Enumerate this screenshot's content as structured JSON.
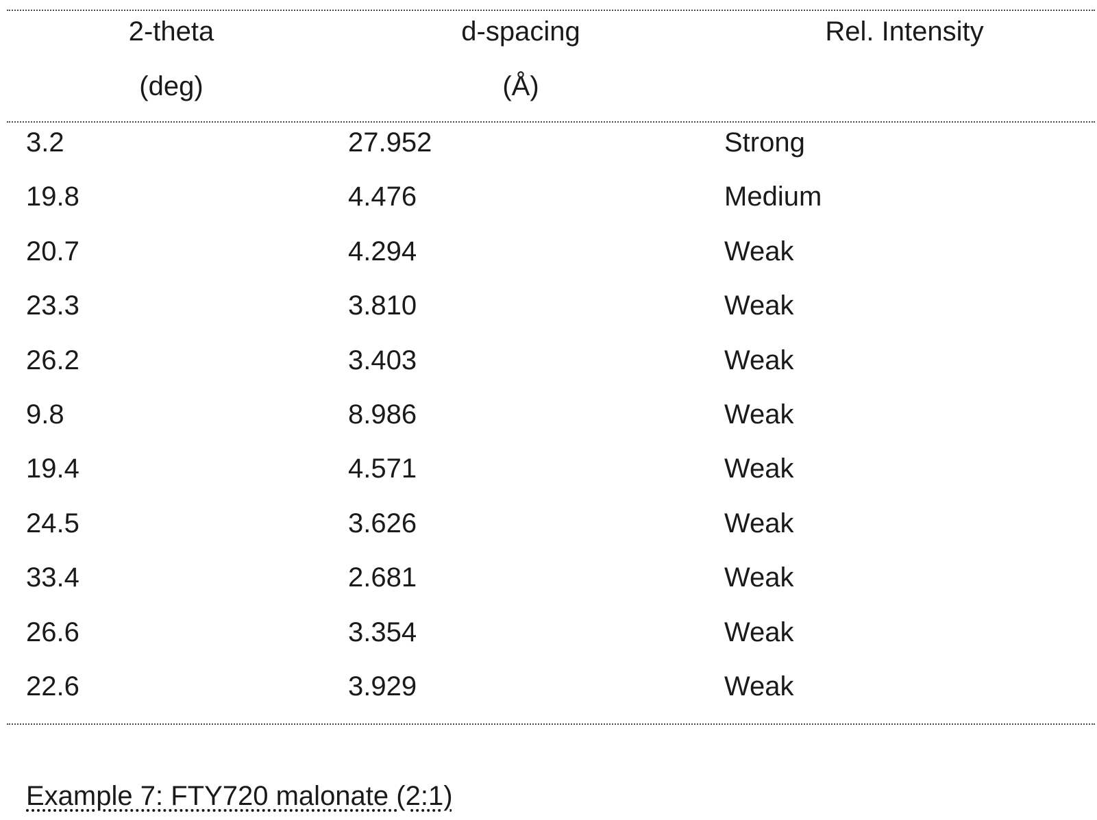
{
  "table": {
    "headers": [
      {
        "line1": "2-theta",
        "line2": "(deg)"
      },
      {
        "line1": "d-spacing",
        "line2": "(Å)"
      },
      {
        "line1": "Rel. Intensity",
        "line2": ""
      }
    ],
    "rows": [
      [
        "3.2",
        "27.952",
        "Strong"
      ],
      [
        "19.8",
        "4.476",
        "Medium"
      ],
      [
        "20.7",
        "4.294",
        "Weak"
      ],
      [
        "23.3",
        "3.810",
        "Weak"
      ],
      [
        "26.2",
        "3.403",
        "Weak"
      ],
      [
        "9.8",
        "8.986",
        "Weak"
      ],
      [
        "19.4",
        "4.571",
        "Weak"
      ],
      [
        "24.5",
        "3.626",
        "Weak"
      ],
      [
        "33.4",
        "2.681",
        "Weak"
      ],
      [
        "26.6",
        "3.354",
        "Weak"
      ],
      [
        "22.6",
        "3.929",
        "Weak"
      ]
    ]
  },
  "caption": "Example 7: FTY720 malonate (2:1)"
}
